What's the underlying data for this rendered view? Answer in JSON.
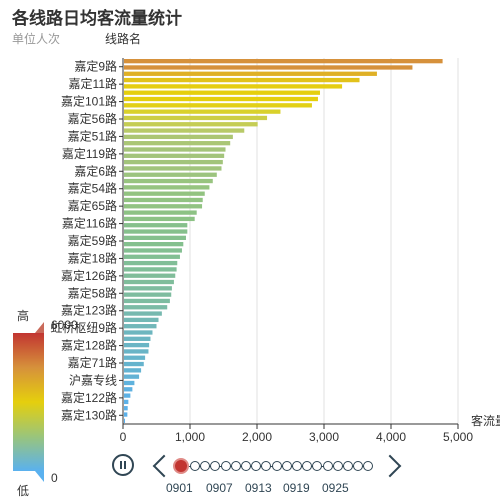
{
  "header": {
    "title": "各线路日均客流量统计",
    "unit_label": "单位人次",
    "axis_name": "线路名"
  },
  "visual_map": {
    "high_label": "高",
    "low_label": "低",
    "max": "6000",
    "min": "0"
  },
  "chart_data": {
    "type": "bar",
    "orientation": "horizontal",
    "title": "各线路日均客流量统计",
    "subtitle": "单位人次",
    "ylabel": "线路名",
    "xlabel": "客流量",
    "xlim": [
      0,
      5000
    ],
    "xticks": [
      "0",
      "1,000",
      "2,000",
      "3,000",
      "4,000",
      "5,000"
    ],
    "grid": true,
    "ytick_labels": [
      "嘉定130路",
      "嘉定122路",
      "沪嘉专线",
      "嘉定71路",
      "嘉定128路",
      "虹桥枢纽9路",
      "嘉定123路",
      "嘉定58路",
      "嘉定126路",
      "嘉定18路",
      "嘉定59路",
      "嘉定116路",
      "嘉定65路",
      "嘉定54路",
      "嘉定6路",
      "嘉定119路",
      "嘉定51路",
      "嘉定56路",
      "嘉定101路",
      "嘉定11路",
      "嘉定9路"
    ],
    "values": [
      4770,
      4320,
      3790,
      3530,
      3270,
      2940,
      2910,
      2820,
      2350,
      2150,
      2010,
      1810,
      1640,
      1600,
      1530,
      1510,
      1490,
      1470,
      1400,
      1340,
      1290,
      1220,
      1190,
      1180,
      1100,
      1070,
      960,
      960,
      940,
      900,
      880,
      850,
      810,
      800,
      780,
      760,
      730,
      720,
      700,
      660,
      580,
      530,
      500,
      440,
      410,
      390,
      380,
      330,
      310,
      270,
      240,
      170,
      140,
      110,
      80,
      70,
      65,
      30
    ],
    "bar_colors": [
      "#d6913b",
      "#d6913b",
      "#dfb026",
      "#e2c21b",
      "#e5cd10",
      "#e5cf0d",
      "#e5cf0d",
      "#e2d016",
      "#d9d12b",
      "#ccce45",
      "#c5cd55",
      "#b8ca68",
      "#acc673",
      "#aac676",
      "#a4c47a",
      "#a3c47b",
      "#a2c47b",
      "#a1c47c",
      "#9cc47e",
      "#98c47f",
      "#96c480",
      "#92c381",
      "#91c382",
      "#91c382",
      "#8dc284",
      "#8cc285",
      "#86c08c",
      "#86c08c",
      "#85c08d",
      "#84c08e",
      "#83bf91",
      "#82bf93",
      "#81be97",
      "#80be98",
      "#80bd9a",
      "#7fbd9b",
      "#7ebc9f",
      "#7ebc9f",
      "#7dbca1",
      "#7bbba6",
      "#76b9af",
      "#73b8b5",
      "#71b7b9",
      "#6db6bf",
      "#6bb5c2",
      "#6ab5c5",
      "#69b4c6",
      "#66b4cb",
      "#65b3cd",
      "#63b3d2",
      "#62b2d5",
      "#5fb2dd",
      "#5eb1e1",
      "#5db1e4",
      "#5cb1e8",
      "#5bb1e9",
      "#5bb1ea",
      "#5ab1ee"
    ]
  },
  "timeline": {
    "labels": [
      "0901",
      "0907",
      "0913",
      "0919",
      "0925"
    ],
    "current": "0901"
  }
}
